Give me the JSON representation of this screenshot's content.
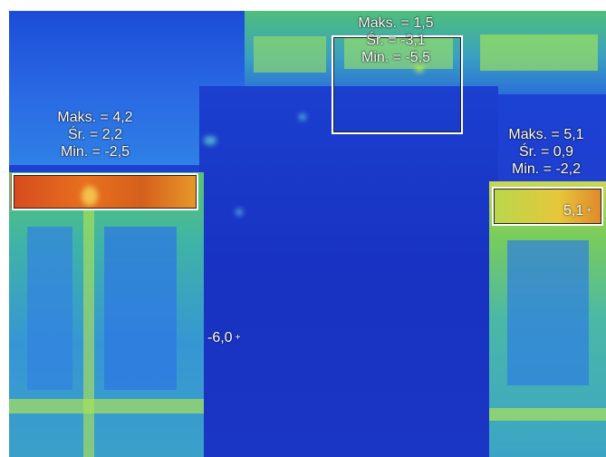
{
  "image": {
    "description_colors": {
      "cold": "#1b36c6",
      "mid": "#3aa0c8",
      "warm": "#e8701e",
      "label": "#ffffff"
    }
  },
  "measurement_areas": [
    {
      "id": "left",
      "max": "Maks. = 4,2",
      "avg": "Śr. = 2,2",
      "min": "Min. = -2,5"
    },
    {
      "id": "top",
      "max": "Maks. = 1,5",
      "avg": "Śr. = -3,1",
      "min": "Min. = -5,5"
    },
    {
      "id": "right",
      "max": "Maks. = 5,1",
      "avg": "Śr. = 0,9",
      "min": "Min. = -2,2"
    }
  ],
  "points": {
    "min_point": "-6,0",
    "max_point": "5,1",
    "marker": "+"
  }
}
